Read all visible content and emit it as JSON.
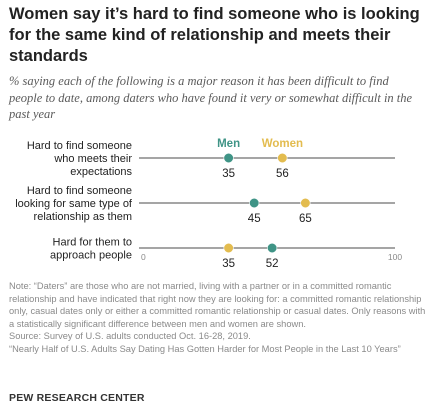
{
  "title": "Women say it’s hard to find someone who is looking for the same kind of relationship and meets their standards",
  "subtitle": "% saying each of the following is a major reason it has been difficult to find people to date, among daters who have found it very or somewhat difficult in the past year",
  "note": "Note: “Daters” are those who are not married, living with a partner or in a committed romantic relationship and have indicated that right now they are looking for: a committed romantic relationship only, casual dates only or either a committed romantic relationship or casual dates. Only reasons with a statistically significant difference between men and women are shown.",
  "source": "Source: Survey of U.S. adults conducted Oct. 16-28, 2019.",
  "report": "“Nearly Half of U.S. Adults Say Dating Has Gotten Harder for Most People in the Last 10 Years”",
  "brand": "PEW RESEARCH CENTER",
  "colors": {
    "men": "#3f9486",
    "women": "#e3bc4f",
    "line": "#6f6f6f",
    "text": "#222222",
    "muted": "#8a8a8a"
  },
  "chart_data": {
    "type": "dot",
    "x_range": [
      0,
      100
    ],
    "tick_labels": [
      "0",
      "100"
    ],
    "legend": [
      "Men",
      "Women"
    ],
    "categories": [
      [
        "Hard to find someone",
        "who meets their",
        "expectations"
      ],
      [
        "Hard to find someone",
        "looking for same type of",
        "relationship as them"
      ],
      [
        "Hard for them to",
        "approach people"
      ]
    ],
    "series": [
      {
        "name": "Men",
        "values": [
          35,
          45,
          52
        ]
      },
      {
        "name": "Women",
        "values": [
          56,
          65,
          35
        ]
      }
    ]
  }
}
